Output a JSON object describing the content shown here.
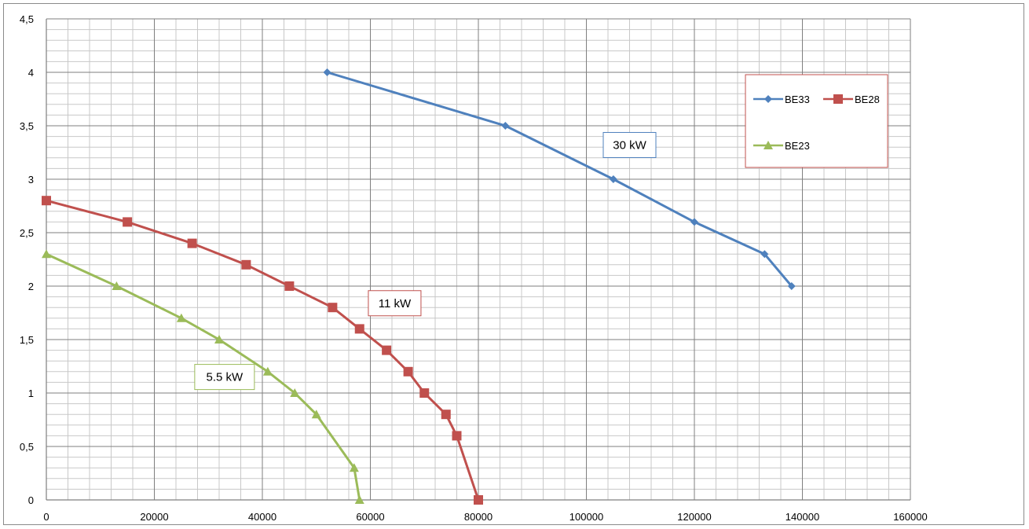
{
  "chart_data": {
    "type": "line",
    "title": "",
    "xlabel": "",
    "ylabel": "",
    "xlim": [
      0,
      160000
    ],
    "ylim": [
      0,
      4.5
    ],
    "x_ticks": [
      0,
      20000,
      40000,
      60000,
      80000,
      100000,
      120000,
      140000,
      160000
    ],
    "x_tick_labels": [
      "0",
      "20000",
      "40000",
      "60000",
      "80000",
      "100000",
      "120000",
      "140000",
      "160000"
    ],
    "y_ticks": [
      0,
      0.5,
      1,
      1.5,
      2,
      2.5,
      3,
      3.5,
      4,
      4.5
    ],
    "y_tick_labels": [
      "0",
      "0,5",
      "1",
      "1,5",
      "2",
      "2,5",
      "3",
      "3,5",
      "4",
      "4,5"
    ],
    "minor_x_step": 4000,
    "minor_y_step": 0.1,
    "grid": true,
    "legend_position": "right",
    "series": [
      {
        "name": "BE33",
        "color": "#4f81bd",
        "marker": "diamond",
        "points": [
          [
            52000,
            4.0
          ],
          [
            85000,
            3.5
          ],
          [
            105000,
            3.0
          ],
          [
            120000,
            2.6
          ],
          [
            133000,
            2.3
          ],
          [
            138000,
            2.0
          ]
        ]
      },
      {
        "name": "BE28",
        "color": "#c0504d",
        "marker": "square",
        "points": [
          [
            0,
            2.8
          ],
          [
            15000,
            2.6
          ],
          [
            27000,
            2.4
          ],
          [
            37000,
            2.2
          ],
          [
            45000,
            2.0
          ],
          [
            53000,
            1.8
          ],
          [
            58000,
            1.6
          ],
          [
            63000,
            1.4
          ],
          [
            67000,
            1.2
          ],
          [
            70000,
            1.0
          ],
          [
            74000,
            0.8
          ],
          [
            76000,
            0.6
          ],
          [
            80000,
            0.0
          ]
        ]
      },
      {
        "name": "BE23",
        "color": "#9bbb59",
        "marker": "triangle",
        "points": [
          [
            0,
            2.3
          ],
          [
            13000,
            2.0
          ],
          [
            25000,
            1.7
          ],
          [
            32000,
            1.5
          ],
          [
            41000,
            1.2
          ],
          [
            46000,
            1.0
          ],
          [
            50000,
            0.8
          ],
          [
            57000,
            0.3
          ],
          [
            58000,
            0.0
          ]
        ]
      }
    ],
    "annotations": [
      {
        "text": "30 kW",
        "border": "#4f81bd",
        "at": [
          108000,
          3.32
        ]
      },
      {
        "text": "11 kW",
        "border": "#c0504d",
        "at": [
          64500,
          1.84
        ]
      },
      {
        "text": "5.5 kW",
        "border": "#9bbb59",
        "at": [
          33000,
          1.15
        ]
      }
    ]
  }
}
